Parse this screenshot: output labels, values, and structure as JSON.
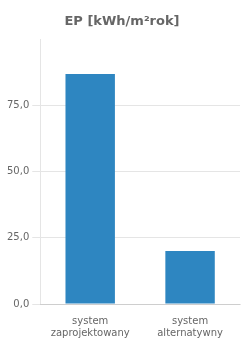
{
  "chart_data": {
    "type": "bar",
    "title": "EP [kWh/m²rok]",
    "categories": [
      "system\nzaprojektowany",
      "system\nalternatywny"
    ],
    "values": [
      87.0,
      20.0
    ],
    "color": "#2E86C1",
    "ylim": [
      0,
      100
    ],
    "yticks": [
      {
        "value": 0,
        "label": "0,0"
      },
      {
        "value": 25,
        "label": "25,0"
      },
      {
        "value": 50,
        "label": "50,0"
      },
      {
        "value": 75,
        "label": "75,0"
      }
    ],
    "grid": true
  }
}
